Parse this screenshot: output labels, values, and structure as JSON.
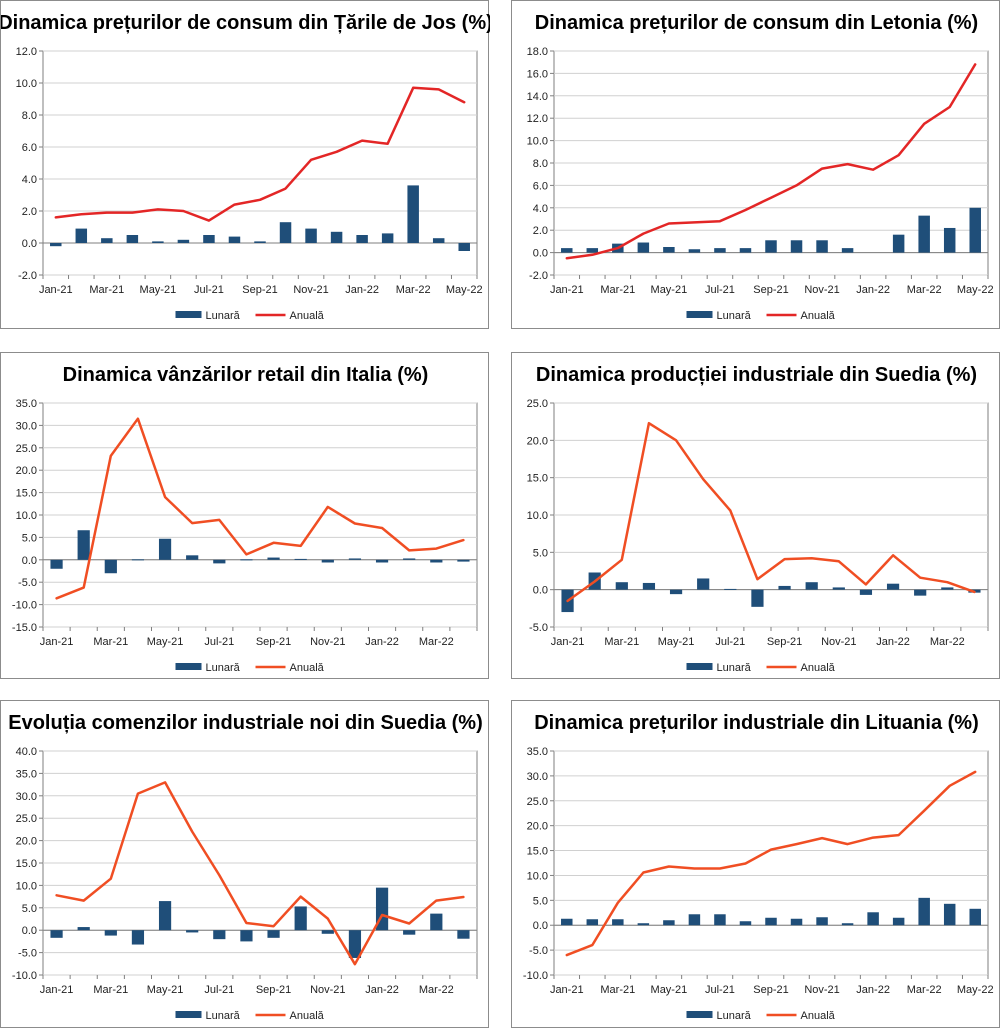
{
  "colors": {
    "bar": "#1f4e79",
    "line_red": "#e32626",
    "line_orange": "#f04e23",
    "grid": "#d0d0d0",
    "axis": "#7f7f7f"
  },
  "legend": {
    "monthly": "Lunară",
    "annual": "Anuală"
  },
  "chart_data": [
    {
      "type": "bar+line",
      "title": "Dinamica prețurilor de consum din Țările de Jos (%)",
      "line_color": "red",
      "ylim": [
        -2,
        12
      ],
      "ystep": 2,
      "ydecimals": 1,
      "categories": [
        "Jan-21",
        "Feb-21",
        "Mar-21",
        "Apr-21",
        "May-21",
        "Jun-21",
        "Jul-21",
        "Aug-21",
        "Sep-21",
        "Oct-21",
        "Nov-21",
        "Dec-21",
        "Jan-22",
        "Feb-22",
        "Mar-22",
        "Apr-22",
        "May-22"
      ],
      "xlabels": [
        "Jan-21",
        "Mar-21",
        "May-21",
        "Jul-21",
        "Sep-21",
        "Nov-21",
        "Jan-22",
        "Mar-22",
        "May-22"
      ],
      "series": [
        {
          "name": "Lunară",
          "kind": "bar",
          "values": [
            -0.2,
            0.9,
            0.3,
            0.5,
            0.1,
            0.2,
            0.5,
            0.4,
            0.1,
            1.3,
            0.9,
            0.7,
            0.5,
            0.6,
            3.6,
            0.3,
            -0.5
          ]
        },
        {
          "name": "Anuală",
          "kind": "line",
          "values": [
            1.6,
            1.8,
            1.9,
            1.9,
            2.1,
            2.0,
            1.4,
            2.4,
            2.7,
            3.4,
            5.2,
            5.7,
            6.4,
            6.2,
            9.7,
            9.6,
            8.8
          ]
        }
      ]
    },
    {
      "type": "bar+line",
      "title": "Dinamica prețurilor de consum din Letonia (%)",
      "line_color": "red",
      "ylim": [
        -2,
        18
      ],
      "ystep": 2,
      "ydecimals": 1,
      "categories": [
        "Jan-21",
        "Feb-21",
        "Mar-21",
        "Apr-21",
        "May-21",
        "Jun-21",
        "Jul-21",
        "Aug-21",
        "Sep-21",
        "Oct-21",
        "Nov-21",
        "Dec-21",
        "Jan-22",
        "Feb-22",
        "Mar-22",
        "Apr-22",
        "May-22"
      ],
      "xlabels": [
        "Jan-21",
        "Mar-21",
        "May-21",
        "Jul-21",
        "Sep-21",
        "Nov-21",
        "Jan-22",
        "Mar-22",
        "May-22"
      ],
      "series": [
        {
          "name": "Lunară",
          "kind": "bar",
          "values": [
            0.4,
            0.4,
            0.8,
            0.9,
            0.5,
            0.3,
            0.4,
            0.4,
            1.1,
            1.1,
            1.1,
            0.4,
            0.0,
            1.6,
            3.3,
            2.2,
            4.0
          ]
        },
        {
          "name": "Anuală",
          "kind": "line",
          "values": [
            -0.5,
            -0.2,
            0.4,
            1.7,
            2.6,
            2.7,
            2.8,
            3.8,
            4.9,
            6.0,
            7.5,
            7.9,
            7.4,
            8.7,
            11.5,
            13.0,
            16.8
          ]
        }
      ]
    },
    {
      "type": "bar+line",
      "title": "Dinamica vânzărilor retail din Italia (%)",
      "line_color": "orange",
      "ylim": [
        -15,
        35
      ],
      "ystep": 5,
      "ydecimals": 1,
      "categories": [
        "Jan-21",
        "Feb-21",
        "Mar-21",
        "Apr-21",
        "May-21",
        "Jun-21",
        "Jul-21",
        "Aug-21",
        "Sep-21",
        "Oct-21",
        "Nov-21",
        "Dec-21",
        "Jan-22",
        "Feb-22",
        "Mar-22",
        "Apr-22"
      ],
      "xlabels": [
        "Jan-21",
        "Mar-21",
        "May-21",
        "Jul-21",
        "Sep-21",
        "Nov-21",
        "Jan-22",
        "Mar-22"
      ],
      "series": [
        {
          "name": "Lunară",
          "kind": "bar",
          "values": [
            -2.0,
            6.6,
            -3.0,
            0.1,
            4.7,
            1.0,
            -0.8,
            0.1,
            0.5,
            0.2,
            -0.6,
            0.3,
            -0.6,
            0.3,
            -0.6,
            -0.4
          ]
        },
        {
          "name": "Anuală",
          "kind": "line",
          "values": [
            -8.6,
            -6.2,
            23.2,
            31.5,
            14.0,
            8.2,
            8.9,
            1.2,
            3.8,
            3.1,
            11.8,
            8.1,
            7.1,
            2.1,
            2.5,
            4.4
          ]
        }
      ]
    },
    {
      "type": "bar+line",
      "title": "Dinamica producției industriale din Suedia (%)",
      "line_color": "orange",
      "ylim": [
        -5,
        25
      ],
      "ystep": 5,
      "ydecimals": 1,
      "categories": [
        "Jan-21",
        "Feb-21",
        "Mar-21",
        "Apr-21",
        "May-21",
        "Jun-21",
        "Jul-21",
        "Aug-21",
        "Sep-21",
        "Oct-21",
        "Nov-21",
        "Dec-21",
        "Jan-22",
        "Feb-22",
        "Mar-22",
        "Apr-22"
      ],
      "xlabels": [
        "Jan-21",
        "Mar-21",
        "May-21",
        "Jul-21",
        "Sep-21",
        "Nov-21",
        "Jan-22",
        "Mar-22"
      ],
      "series": [
        {
          "name": "Lunară",
          "kind": "bar",
          "values": [
            -3.0,
            2.3,
            1.0,
            0.9,
            -0.6,
            1.5,
            0.1,
            -2.3,
            0.5,
            1.0,
            0.3,
            -0.7,
            0.8,
            -0.8,
            0.3,
            -0.4
          ]
        },
        {
          "name": "Anuală",
          "kind": "line",
          "values": [
            -1.5,
            1.1,
            4.0,
            22.3,
            20.0,
            14.8,
            10.6,
            1.4,
            4.1,
            4.2,
            3.8,
            0.7,
            4.6,
            1.6,
            1.0,
            -0.3
          ]
        }
      ]
    },
    {
      "type": "bar+line",
      "title": "Evoluția comenzilor industriale noi din Suedia (%)",
      "line_color": "orange",
      "ylim": [
        -10,
        40
      ],
      "ystep": 5,
      "ydecimals": 1,
      "categories": [
        "Jan-21",
        "Feb-21",
        "Mar-21",
        "Apr-21",
        "May-21",
        "Jun-21",
        "Jul-21",
        "Aug-21",
        "Sep-21",
        "Oct-21",
        "Nov-21",
        "Dec-21",
        "Jan-22",
        "Feb-22",
        "Mar-22",
        "Apr-22"
      ],
      "xlabels": [
        "Jan-21",
        "Mar-21",
        "May-21",
        "Jul-21",
        "Sep-21",
        "Nov-21",
        "Jan-22",
        "Mar-22"
      ],
      "series": [
        {
          "name": "Lunară",
          "kind": "bar",
          "values": [
            -1.7,
            0.7,
            -1.2,
            -3.2,
            6.5,
            -0.5,
            -2.0,
            -2.5,
            -1.7,
            5.3,
            -0.8,
            -6.2,
            9.5,
            -1.0,
            3.7,
            -1.9
          ]
        },
        {
          "name": "Anuală",
          "kind": "line",
          "values": [
            7.8,
            6.6,
            11.5,
            30.5,
            33.0,
            22.0,
            12.3,
            1.6,
            0.9,
            7.5,
            2.6,
            -7.6,
            3.4,
            1.5,
            6.6,
            7.4
          ]
        }
      ]
    },
    {
      "type": "bar+line",
      "title": "Dinamica prețurilor industriale din Lituania (%)",
      "line_color": "orange",
      "ylim": [
        -10,
        35
      ],
      "ystep": 5,
      "ydecimals": 1,
      "categories": [
        "Jan-21",
        "Feb-21",
        "Mar-21",
        "Apr-21",
        "May-21",
        "Jun-21",
        "Jul-21",
        "Aug-21",
        "Sep-21",
        "Oct-21",
        "Nov-21",
        "Dec-21",
        "Jan-22",
        "Feb-22",
        "Mar-22",
        "Apr-22",
        "May-22"
      ],
      "xlabels": [
        "Jan-21",
        "Mar-21",
        "May-21",
        "Jul-21",
        "Sep-21",
        "Nov-21",
        "Jan-22",
        "Mar-22",
        "May-22"
      ],
      "series": [
        {
          "name": "Lunară",
          "kind": "bar",
          "values": [
            1.3,
            1.2,
            1.2,
            0.4,
            1.0,
            2.2,
            2.2,
            0.8,
            1.5,
            1.3,
            1.6,
            0.4,
            2.6,
            1.5,
            5.5,
            4.3,
            3.3
          ]
        },
        {
          "name": "Anuală",
          "kind": "line",
          "values": [
            -6.0,
            -4.0,
            4.5,
            10.6,
            11.8,
            11.4,
            11.4,
            12.4,
            15.2,
            16.3,
            17.5,
            16.3,
            17.6,
            18.1,
            23.0,
            28.0,
            30.8
          ]
        }
      ]
    }
  ]
}
